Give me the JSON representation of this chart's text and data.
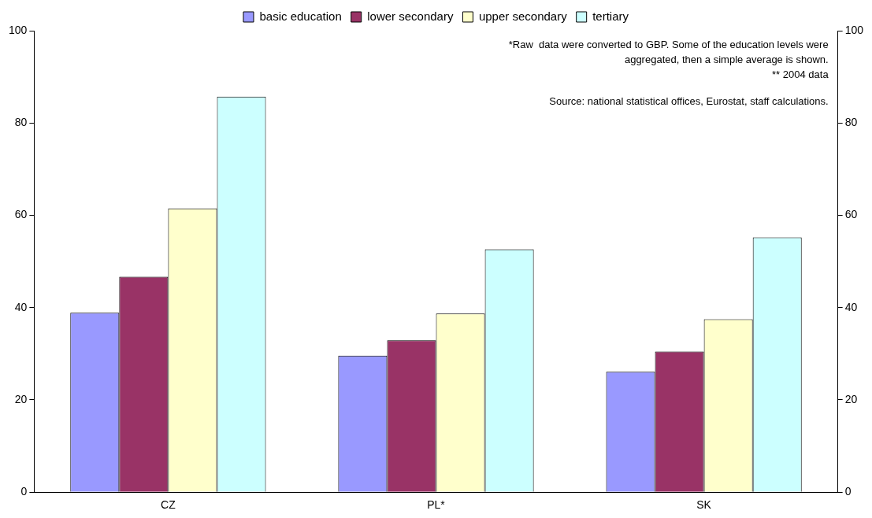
{
  "chart_data": {
    "type": "bar",
    "categories": [
      "CZ",
      "PL*",
      "SK"
    ],
    "series": [
      {
        "name": "basic education",
        "color": "#9999ff",
        "values": [
          38.9,
          29.6,
          26.1
        ]
      },
      {
        "name": "lower secondary",
        "color": "#993366",
        "values": [
          46.7,
          32.9,
          30.5
        ]
      },
      {
        "name": "upper secondary",
        "color": "#ffffcc",
        "values": [
          61.5,
          38.7,
          37.5
        ]
      },
      {
        "name": "tertiary",
        "color": "#ccffff",
        "values": [
          85.7,
          52.6,
          55.2
        ]
      }
    ],
    "ylim": [
      0,
      100
    ],
    "yticks": [
      0,
      20,
      40,
      60,
      80,
      100
    ],
    "y2lim": [
      0,
      100
    ],
    "y2ticks": [
      0,
      20,
      40,
      60,
      80,
      100
    ],
    "grid": false,
    "legend": "top",
    "annotations": [
      "*Raw  data were converted to GBP. Some of the education levels were aggregated, then a simple average is shown.",
      "** 2004 data",
      "Source: national statistical offices, Eurostat, staff calculations."
    ]
  }
}
